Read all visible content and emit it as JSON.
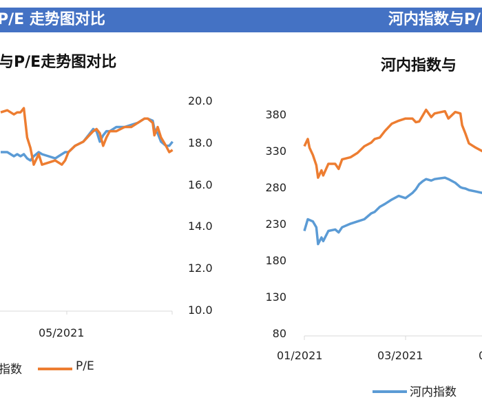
{
  "header": {
    "left_band_text": "P/E 走势图对比",
    "right_band_text": "河内指数与P/",
    "band_color": "#4472C4"
  },
  "chart_data": [
    {
      "type": "line",
      "title": "与P/E走势图对比",
      "x_tick_labels": [
        "05/2021"
      ],
      "y2_tick_labels": [
        "20.0",
        "18.0",
        "16.0",
        "14.0",
        "12.0",
        "10.0"
      ],
      "y2lim": [
        10,
        20
      ],
      "legend": [
        "指数",
        "P/E"
      ],
      "legend_placement": "bottom",
      "grid": false,
      "x": [
        "2021-03-22",
        "2021-03-26",
        "2021-03-30",
        "2021-04-01",
        "2021-04-03",
        "2021-04-05",
        "2021-04-07",
        "2021-04-09",
        "2021-04-11",
        "2021-04-14",
        "2021-04-16",
        "2021-04-20",
        "2021-04-24",
        "2021-04-28",
        "2021-04-30",
        "2021-05-02",
        "2021-05-06",
        "2021-05-11",
        "2021-05-17",
        "2021-05-19",
        "2021-05-21",
        "2021-05-23",
        "2021-05-25",
        "2021-05-27",
        "2021-05-31",
        "2021-06-05",
        "2021-06-09",
        "2021-06-13",
        "2021-06-17",
        "2021-06-19",
        "2021-06-22",
        "2021-06-23",
        "2021-06-25",
        "2021-06-27",
        "2021-06-30",
        "2021-07-02",
        "2021-07-04"
      ],
      "series": [
        {
          "name": "指数",
          "color": "#5B9BD5",
          "values": [
            17.6,
            17.6,
            17.4,
            17.5,
            17.4,
            17.5,
            17.3,
            17.2,
            17.4,
            17.6,
            17.5,
            17.4,
            17.3,
            17.5,
            17.6,
            17.6,
            17.9,
            18.1,
            18.7,
            18.6,
            18.1,
            18.4,
            18.6,
            18.6,
            18.8,
            18.8,
            18.9,
            19.0,
            19.2,
            19.2,
            19.1,
            18.7,
            18.5,
            18.1,
            17.9,
            17.9,
            18.1
          ]
        },
        {
          "name": "P/E",
          "color": "#ED7D31",
          "values": [
            19.5,
            19.6,
            19.4,
            19.5,
            19.5,
            19.7,
            18.3,
            17.8,
            17.0,
            17.5,
            17.0,
            17.1,
            17.2,
            17.0,
            17.2,
            17.6,
            17.9,
            18.1,
            18.6,
            18.7,
            18.5,
            17.9,
            18.3,
            18.6,
            18.6,
            18.8,
            18.8,
            19.0,
            19.2,
            19.2,
            19.0,
            18.4,
            18.8,
            18.3,
            17.9,
            17.6,
            17.7
          ]
        }
      ]
    },
    {
      "type": "line",
      "title": "河内指数与",
      "x_tick_labels": [
        "01/2021",
        "03/2021"
      ],
      "y_tick_labels": [
        "380",
        "330",
        "280",
        "230",
        "180",
        "130",
        "80"
      ],
      "ylim": [
        80,
        380
      ],
      "legend": [
        "河内指数"
      ],
      "legend_placement": "bottom",
      "grid": false,
      "x": [
        "2021-01-01",
        "2021-01-03",
        "2021-01-04",
        "2021-01-06",
        "2021-01-08",
        "2021-01-09",
        "2021-01-11",
        "2021-01-12",
        "2021-01-15",
        "2021-01-19",
        "2021-01-21",
        "2021-01-23",
        "2021-01-28",
        "2021-02-01",
        "2021-02-05",
        "2021-02-09",
        "2021-02-11",
        "2021-02-14",
        "2021-02-17",
        "2021-02-21",
        "2021-02-25",
        "2021-03-01",
        "2021-03-05",
        "2021-03-07",
        "2021-03-09",
        "2021-03-11",
        "2021-03-13",
        "2021-03-16",
        "2021-03-18",
        "2021-03-24",
        "2021-03-26",
        "2021-03-30",
        "2021-04-02",
        "2021-04-03",
        "2021-04-05",
        "2021-04-07",
        "2021-04-11",
        "2021-04-15"
      ],
      "series": [
        {
          "name": "河内指数",
          "color": "#5B9BD5",
          "values": [
            222,
            238,
            237,
            235,
            227,
            204,
            213,
            208,
            222,
            224,
            220,
            227,
            232,
            235,
            238,
            246,
            248,
            255,
            259,
            265,
            270,
            267,
            274,
            279,
            286,
            290,
            293,
            291,
            293,
            295,
            293,
            288,
            282,
            281,
            280,
            278,
            276,
            274
          ]
        },
        {
          "color": "#ED7D31",
          "values": [
            338,
            348,
            336,
            326,
            312,
            295,
            305,
            298,
            314,
            314,
            307,
            320,
            323,
            329,
            338,
            343,
            348,
            350,
            359,
            369,
            373,
            376,
            376,
            371,
            372,
            380,
            388,
            378,
            383,
            386,
            376,
            385,
            383,
            367,
            355,
            342,
            336,
            331
          ]
        }
      ]
    }
  ]
}
